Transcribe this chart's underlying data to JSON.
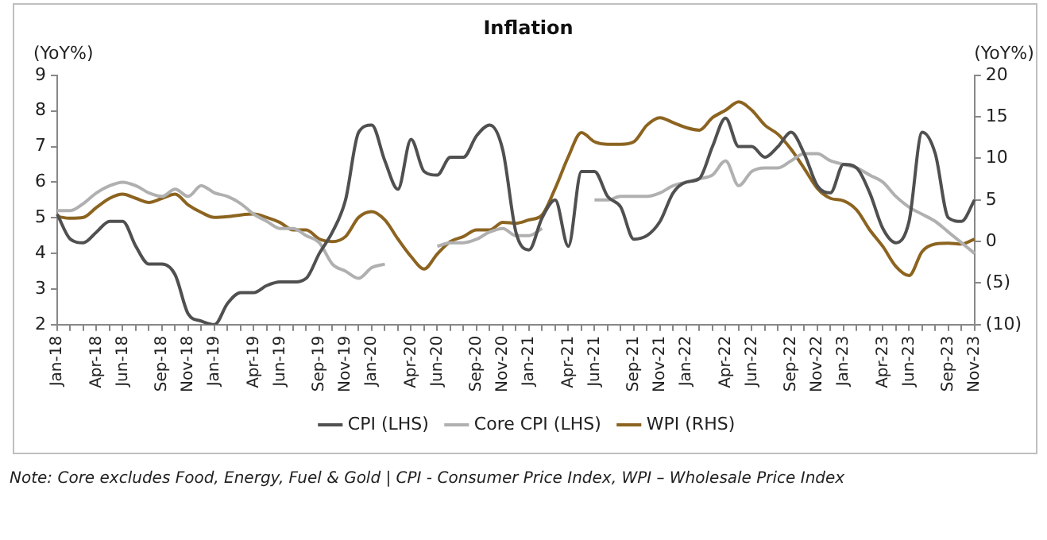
{
  "chart_data": {
    "type": "line",
    "title": "Inflation",
    "categories": [
      "Jan-18",
      null,
      null,
      "Apr-18",
      null,
      "Jun-18",
      null,
      null,
      "Sep-18",
      null,
      "Nov-18",
      null,
      "Jan-19",
      null,
      null,
      "Apr-19",
      null,
      "Jun-19",
      null,
      null,
      "Sep-19",
      null,
      "Nov-19",
      null,
      "Jan-20",
      null,
      null,
      "Apr-20",
      null,
      "Jun-20",
      null,
      null,
      "Sep-20",
      null,
      "Nov-20",
      null,
      "Jan-21",
      null,
      null,
      "Apr-21",
      null,
      "Jun-21",
      null,
      null,
      "Sep-21",
      null,
      "Nov-21",
      null,
      "Jan-22",
      null,
      null,
      "Apr-22",
      null,
      "Jun-22",
      null,
      null,
      "Sep-22",
      null,
      "Nov-22",
      null,
      "Jan-23",
      null,
      null,
      "Apr-23",
      null,
      "Jun-23",
      null,
      null,
      "Sep-23",
      null,
      "Nov-23"
    ],
    "series": [
      {
        "name": "CPI (LHS)",
        "color": "#505050",
        "values": [
          5.1,
          4.4,
          4.3,
          4.6,
          4.9,
          4.9,
          4.2,
          3.7,
          3.7,
          3.4,
          2.3,
          2.1,
          2.0,
          2.6,
          2.9,
          2.9,
          3.1,
          3.2,
          3.2,
          3.3,
          4.0,
          4.6,
          5.5,
          7.4,
          7.6,
          6.6,
          5.8,
          7.2,
          6.3,
          6.2,
          6.7,
          6.7,
          7.3,
          7.6,
          6.9,
          4.6,
          4.1,
          5.0,
          5.5,
          4.2,
          6.3,
          6.3,
          5.6,
          5.3,
          4.4,
          4.5,
          4.9,
          5.7,
          6.0,
          6.1,
          7.0,
          7.8,
          7.0,
          7.0,
          6.7,
          7.0,
          7.4,
          6.8,
          5.9,
          5.7,
          6.5,
          6.4,
          5.7,
          4.7,
          4.3,
          4.9,
          7.4,
          6.8,
          5.0,
          4.9,
          5.5
        ]
      },
      {
        "name": "Core CPI (LHS)",
        "color": "#b0b0b0",
        "values": [
          5.2,
          5.2,
          5.4,
          5.7,
          5.9,
          6.0,
          5.9,
          5.7,
          5.6,
          5.8,
          5.6,
          5.9,
          5.7,
          5.6,
          5.4,
          5.1,
          4.9,
          4.7,
          4.7,
          4.5,
          4.3,
          3.7,
          3.5,
          3.3,
          3.6,
          3.7,
          null,
          null,
          null,
          4.2,
          4.3,
          4.3,
          4.4,
          4.6,
          4.7,
          4.5,
          4.5,
          4.7,
          null,
          null,
          null,
          5.5,
          5.5,
          5.6,
          5.6,
          5.6,
          5.7,
          5.9,
          6.0,
          6.1,
          6.2,
          6.6,
          5.9,
          6.3,
          6.4,
          6.4,
          6.6,
          6.8,
          6.8,
          6.6,
          6.5,
          6.4,
          6.2,
          6.0,
          5.6,
          5.3,
          5.1,
          4.9,
          4.6,
          4.3,
          4.0
        ]
      },
      {
        "name": "WPI (RHS)",
        "color": "#8c6420",
        "axis": "y2",
        "values": [
          3.0,
          2.8,
          2.9,
          4.1,
          5.2,
          5.7,
          5.2,
          4.7,
          5.2,
          5.7,
          4.4,
          3.5,
          2.9,
          3.0,
          3.2,
          3.3,
          2.9,
          2.3,
          1.4,
          1.4,
          0.3,
          0.0,
          0.6,
          2.9,
          3.6,
          2.6,
          0.3,
          -1.8,
          -3.3,
          -1.5,
          0.0,
          0.6,
          1.4,
          1.4,
          2.3,
          2.2,
          2.6,
          3.2,
          6.4,
          10.2,
          13.1,
          12.0,
          11.7,
          11.7,
          12.0,
          14.0,
          14.9,
          14.3,
          13.7,
          13.4,
          14.9,
          15.8,
          16.8,
          15.8,
          14.0,
          12.9,
          11.1,
          8.8,
          6.4,
          5.2,
          4.9,
          3.8,
          1.4,
          -0.6,
          -3.0,
          -4.1,
          -1.2,
          -0.3,
          -0.2,
          -0.3,
          0.3
        ]
      }
    ],
    "ylabel": "(YoY%)",
    "y2label": "(YoY%)",
    "ylim": [
      2,
      9
    ],
    "yticks": [
      2,
      3,
      4,
      5,
      6,
      7,
      8,
      9
    ],
    "y2lim": [
      -10,
      20
    ],
    "y2ticks": [
      {
        "value": -10,
        "label": "(10)"
      },
      {
        "value": -5,
        "label": "(5)"
      },
      0,
      5,
      10,
      15,
      20
    ],
    "legend": "bottom",
    "annotations": [
      "Note: Core excludes Food, Energy, Fuel & Gold | CPI - Consumer Price Index, WPI – Wholesale Price Index"
    ]
  }
}
